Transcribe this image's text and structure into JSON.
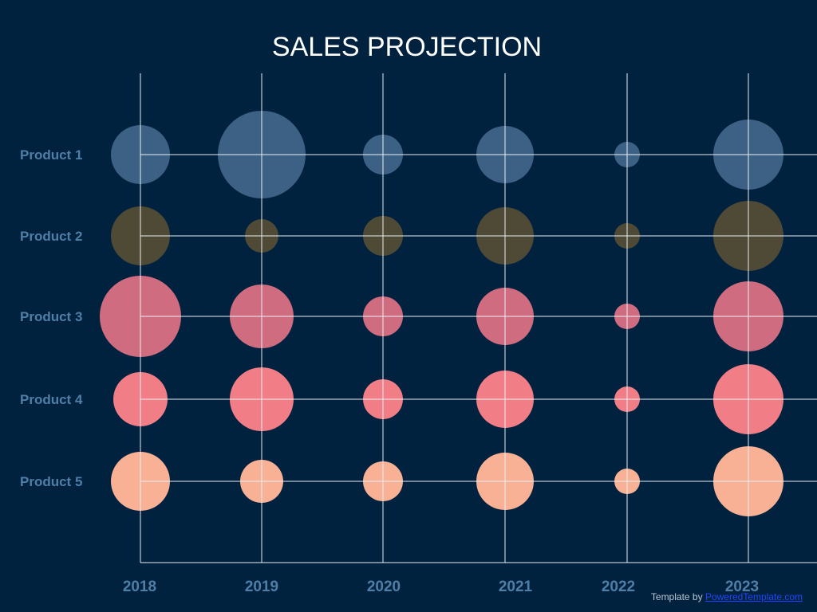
{
  "chart_data": {
    "type": "scatter",
    "title": "SALES PROJECTION",
    "years": [
      "2018",
      "2019",
      "2020",
      "2021",
      "2022",
      "2023"
    ],
    "products": [
      {
        "name": "Product 1",
        "color": "#3d6184",
        "sizes": [
          37,
          55,
          25,
          36,
          16,
          44
        ]
      },
      {
        "name": "Product 2",
        "color": "#4e4a35",
        "sizes": [
          37,
          21,
          25,
          36,
          16,
          44
        ]
      },
      {
        "name": "Product 3",
        "color": "#cf6c80",
        "sizes": [
          51,
          40,
          25,
          36,
          16,
          44
        ]
      },
      {
        "name": "Product 4",
        "color": "#f17e86",
        "sizes": [
          34,
          40,
          25,
          36,
          16,
          44
        ]
      },
      {
        "name": "Product 5",
        "color": "#f8b194",
        "sizes": [
          37,
          27,
          25,
          36,
          16,
          44
        ]
      }
    ],
    "grid": true,
    "grid_color": "#e8eef4"
  },
  "credit": {
    "prefix": "Template by",
    "link": "PoweredTemplate.com"
  }
}
